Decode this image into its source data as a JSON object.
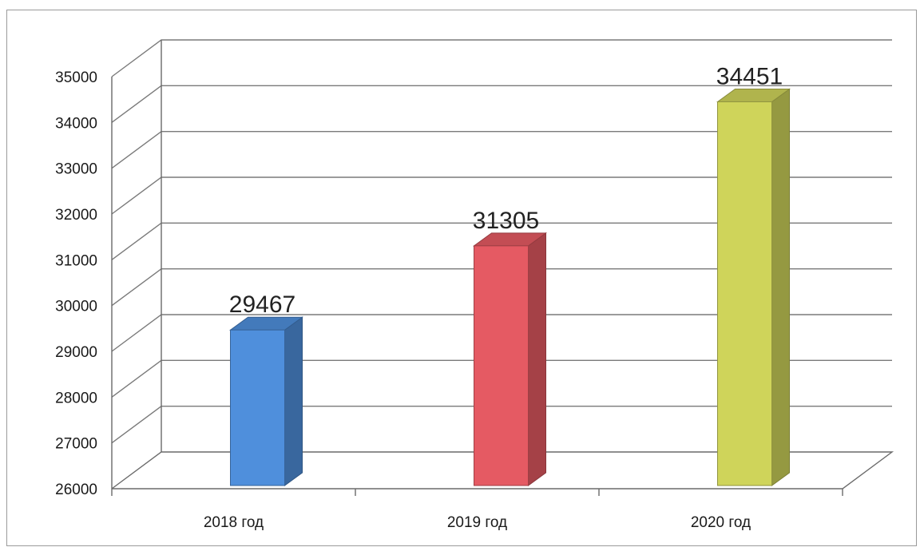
{
  "chart_data": {
    "type": "bar",
    "title": "",
    "xlabel": "",
    "ylabel": "",
    "categories": [
      "2018 год",
      "2019 год",
      "2020 год"
    ],
    "values": [
      29467,
      31305,
      34451
    ],
    "data_labels": [
      "29467",
      "31305",
      "34451"
    ],
    "ylim": [
      26000,
      35000
    ],
    "yticks": [
      26000,
      27000,
      28000,
      29000,
      30000,
      31000,
      32000,
      33000,
      34000,
      35000
    ],
    "ytick_labels": [
      "26000",
      "27000",
      "28000",
      "29000",
      "30000",
      "31000",
      "32000",
      "33000",
      "34000",
      "35000"
    ],
    "grid": true,
    "three_d": true,
    "legend": "none",
    "colors": [
      "#4f8fdc",
      "#e55a63",
      "#cfd45a"
    ]
  }
}
